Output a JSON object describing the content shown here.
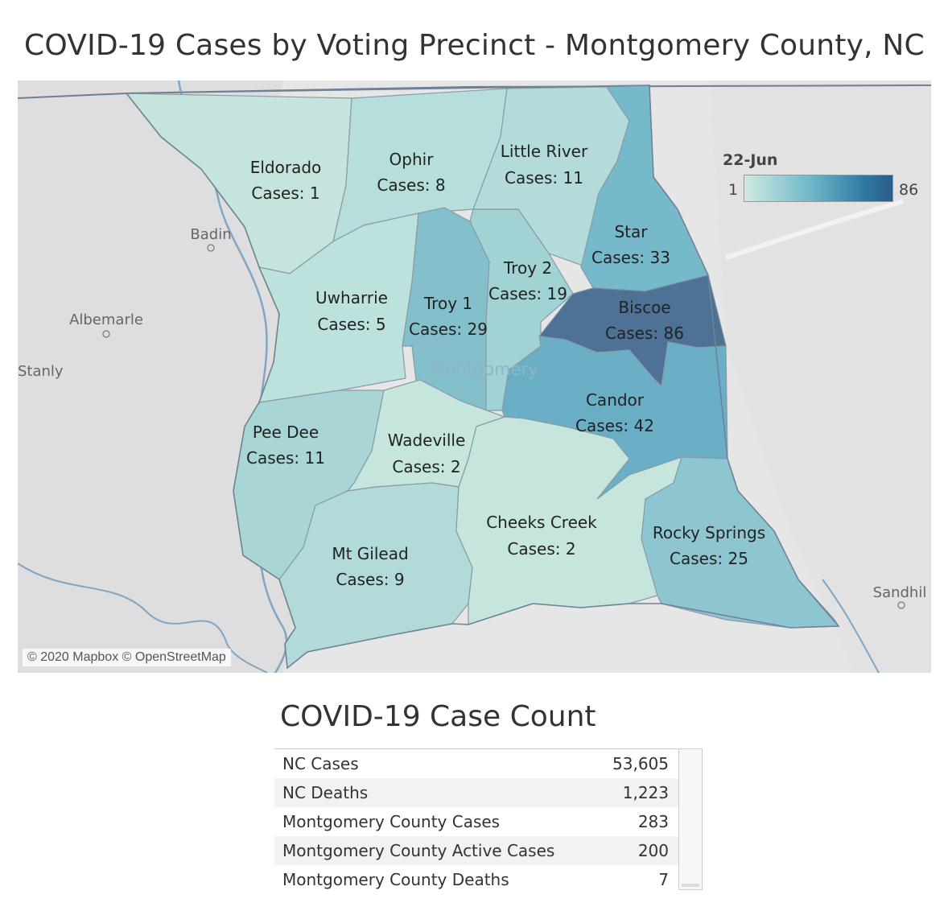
{
  "title": "COVID-19 Cases by Voting Precinct - Montgomery County, NC",
  "map": {
    "attribution": "© 2020 Mapbox © OpenStreetMap",
    "county_label": "Montgomery",
    "legend": {
      "title": "22-Jun",
      "min": "1",
      "max": "86"
    },
    "cities": [
      {
        "name": "Badin"
      },
      {
        "name": "Albemarle"
      },
      {
        "name": "Stanly"
      },
      {
        "name": "Sandhil"
      }
    ],
    "precincts": [
      {
        "name": "Eldorado",
        "cases_label": "Cases: 1",
        "cases": 1,
        "color": "#c4e4dd"
      },
      {
        "name": "Ophir",
        "cases_label": "Cases: 8",
        "cases": 8,
        "color": "#b6dedb"
      },
      {
        "name": "Little River",
        "cases_label": "Cases: 11",
        "cases": 11,
        "color": "#b2dbd9"
      },
      {
        "name": "Star",
        "cases_label": "Cases: 33",
        "cases": 33,
        "color": "#76b9cb"
      },
      {
        "name": "Uwharrie",
        "cases_label": "Cases: 5",
        "cases": 5,
        "color": "#bde1dc"
      },
      {
        "name": "Troy 1",
        "cases_label": "Cases: 29",
        "cases": 29,
        "color": "#84bfcc"
      },
      {
        "name": "Troy 2",
        "cases_label": "Cases: 19",
        "cases": 19,
        "color": "#a1d2d4"
      },
      {
        "name": "Biscoe",
        "cases_label": "Cases: 86",
        "cases": 86,
        "color": "#4e7196"
      },
      {
        "name": "Candor",
        "cases_label": "Cases: 42",
        "cases": 42,
        "color": "#6aafc5"
      },
      {
        "name": "Pee Dee",
        "cases_label": "Cases: 11",
        "cases": 11,
        "color": "#a8d5d6"
      },
      {
        "name": "Wadeville",
        "cases_label": "Cases: 2",
        "cases": 2,
        "color": "#c6e5dd"
      },
      {
        "name": "Mt Gilead",
        "cases_label": "Cases: 9",
        "cases": 9,
        "color": "#b1dad8"
      },
      {
        "name": "Cheeks Creek",
        "cases_label": "Cases: 2",
        "cases": 2,
        "color": "#c6e5dd"
      },
      {
        "name": "Rocky Springs",
        "cases_label": "Cases: 25",
        "cases": 25,
        "color": "#8dc6d0"
      }
    ]
  },
  "case_count": {
    "title": "COVID-19 Case Count",
    "rows": [
      {
        "label": "NC Cases",
        "value": "53,605"
      },
      {
        "label": "NC Deaths",
        "value": "1,223"
      },
      {
        "label": "Montgomery County Cases",
        "value": "283"
      },
      {
        "label": "Montgomery County Active Cases",
        "value": "200"
      },
      {
        "label": "Montgomery County Deaths",
        "value": "7"
      }
    ]
  }
}
